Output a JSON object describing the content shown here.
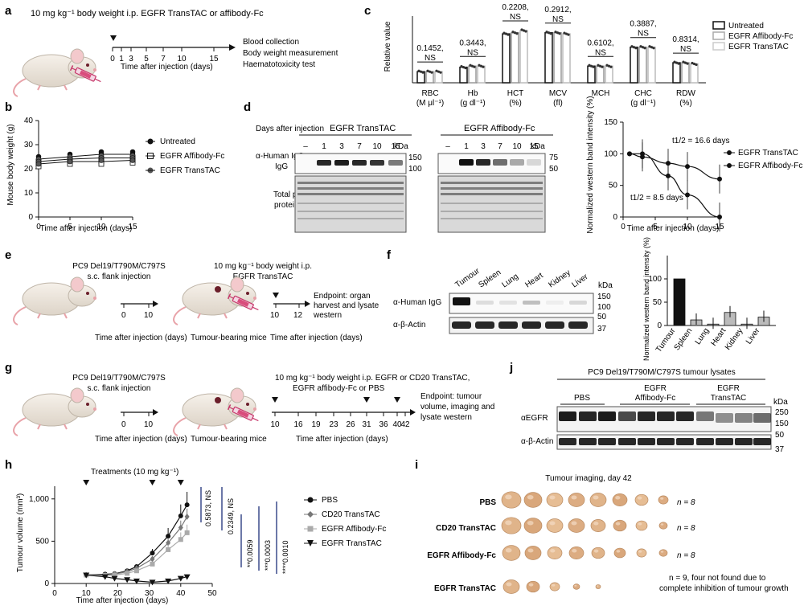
{
  "panels": {
    "a": {
      "letter": "a",
      "header": "10 mg kg⁻¹ body weight i.p. EGFR TransTAC or affibody-Fc",
      "ticks": [
        "0",
        "1",
        "3",
        "5",
        "7",
        "10",
        "15"
      ],
      "axis_label": "Time after injection (days)",
      "outcomes": [
        "Blood collection",
        "Body weight measurement",
        "Haematotoxicity test"
      ]
    },
    "b": {
      "letter": "b",
      "ylabel": "Mouse body weight (g)",
      "xlabel": "Time after injection (days)",
      "legend": [
        "Untreated",
        "EGFR Affibody-Fc",
        "EGFR TransTAC"
      ],
      "yticks": [
        "0",
        "10",
        "20",
        "30",
        "40"
      ],
      "xticks": [
        "0",
        "5",
        "10",
        "15"
      ]
    },
    "c": {
      "letter": "c",
      "ylabel": "Relative value",
      "legend": [
        "Untreated",
        "EGFR Affibody-Fc",
        "EGFR TransTAC"
      ],
      "params": [
        {
          "name": "RBC",
          "unit": "(M μl⁻¹)",
          "p": "0.1452,",
          "ns": "NS"
        },
        {
          "name": "Hb",
          "unit": "(g dl⁻¹)",
          "p": "0.3443,",
          "ns": "NS"
        },
        {
          "name": "HCT",
          "unit": "(%)",
          "p": "0.2208,",
          "ns": "NS"
        },
        {
          "name": "MCV",
          "unit": "(fl)",
          "p": "0.2912,",
          "ns": "NS"
        },
        {
          "name": "MCH",
          "unit": "",
          "p": "0.6102,",
          "ns": "NS"
        },
        {
          "name": "CHC",
          "unit": "(g dl⁻¹)",
          "p": "0.3887,",
          "ns": "NS"
        },
        {
          "name": "RDW",
          "unit": "(%)",
          "p": "0.8314,",
          "ns": "NS"
        }
      ]
    },
    "d": {
      "letter": "d",
      "days_label": "Days after injection",
      "blot1_title": "EGFR TransTAC",
      "blot2_title": "EGFR Affibody-Fc",
      "lanes1": [
        "–",
        "1",
        "3",
        "7",
        "10",
        "15"
      ],
      "lanes2": [
        "–",
        "1",
        "3",
        "7",
        "10",
        "15"
      ],
      "kda": "kDa",
      "mw1": [
        "150",
        "100"
      ],
      "mw2": [
        "75",
        "50"
      ],
      "row1_label": "α-Human IgG",
      "row2_label": "Total protein",
      "ylabel": "Normalized western band intensity (%)",
      "xlabel": "Time after injection (days)",
      "legend": [
        "EGFR TransTAC",
        "EGFR Affibody-Fc"
      ],
      "half_life_1": "t1/2 = 16.6 days",
      "half_life_2": "t1/2 = 8.5 days",
      "yticks": [
        "0",
        "50",
        "100",
        "150"
      ],
      "xticks": [
        "0",
        "5",
        "10",
        "15"
      ]
    },
    "e": {
      "letter": "e",
      "cells": "PC9 Del19/T790M/C797S",
      "injection": "s.c. flank injection",
      "dose": "10 mg kg⁻¹ body weight i.p.",
      "drug": "EGFR TransTAC",
      "ticks1": [
        "0",
        "10"
      ],
      "ticks2": [
        "10",
        "12"
      ],
      "axis1": "Time after injection (days)",
      "mice_label": "Tumour-bearing mice",
      "axis2": "Time after injection (days)",
      "endpoint": "Endpoint: organ harvest and lysate western"
    },
    "f": {
      "letter": "f",
      "organs": [
        "Tumour",
        "Spleen",
        "Lung",
        "Heart",
        "Kidney",
        "Liver"
      ],
      "row1": "α-Human IgG",
      "row2": "α-β-Actin",
      "kda": "kDa",
      "mw": [
        "150",
        "100",
        "50",
        "37"
      ],
      "ylabel": "Normalized western band intensity (%)",
      "yticks": [
        "0",
        "50",
        "100"
      ]
    },
    "g": {
      "letter": "g",
      "cells": "PC9 Del19/T790M/C797S",
      "injection": "s.c. flank injection",
      "dose": "10 mg kg⁻¹ body weight i.p. EGFR or CD20 TransTAC,",
      "drugs": "EGFR affibody-Fc or PBS",
      "ticks1": [
        "0",
        "10"
      ],
      "ticks2": [
        "10",
        "16",
        "19",
        "23",
        "26",
        "31",
        "36",
        "40",
        "42"
      ],
      "axis1": "Time after injection (days)",
      "mice_label": "Tumour-bearing mice",
      "axis2": "Time after injection (days)",
      "endpoint": "Endpoint: tumour volume, imaging and lysate western"
    },
    "h": {
      "letter": "h",
      "treatments": "Treatments (10 mg kg⁻¹)",
      "ylabel": "Tumour volume (mm³)",
      "xlabel": "Time after injection (days)",
      "legend": [
        "PBS",
        "CD20 TransTAC",
        "EGFR Affibody-Fc",
        "EGFR TransTAC"
      ],
      "stats": [
        "0.5873, NS",
        "0.2349, NS",
        "**0.0059",
        "***0.0003",
        "****0.0010"
      ],
      "yticks": [
        "0",
        "500",
        "1,000"
      ],
      "xticks": [
        "0",
        "10",
        "20",
        "30",
        "40",
        "50"
      ]
    },
    "i": {
      "letter": "i",
      "title": "Tumour imaging, day 42",
      "rows": [
        {
          "label": "PBS",
          "n": "n = 8"
        },
        {
          "label": "CD20 TransTAC",
          "n": "n = 8"
        },
        {
          "label": "EGFR Affibody-Fc",
          "n": "n = 8"
        },
        {
          "label": "EGFR TransTAC",
          "n": "n = 9, four not found due to complete inhibition of tumour growth"
        }
      ]
    },
    "j": {
      "letter": "j",
      "title": "PC9 Del19/T790M/C797S tumour lysates",
      "groups": [
        "PBS",
        "EGFR Affibody-Fc",
        "EGFR TransTAC"
      ],
      "row1": "αEGFR",
      "row2": "α-β-Actin",
      "kda": "kDa",
      "mw": [
        "250",
        "150",
        "50",
        "37"
      ]
    }
  },
  "chart_data": [
    {
      "id": "b",
      "type": "line",
      "xlabel": "Time after injection (days)",
      "ylabel": "Mouse body weight (g)",
      "ylim": [
        0,
        40
      ],
      "xlim": [
        0,
        15
      ],
      "x": [
        0,
        5,
        10,
        15
      ],
      "series": [
        {
          "name": "Untreated",
          "values": [
            24,
            25,
            26,
            26
          ]
        },
        {
          "name": "EGFR Affibody-Fc",
          "values": [
            22,
            23,
            23,
            23.5
          ]
        },
        {
          "name": "EGFR TransTAC",
          "values": [
            23,
            24,
            24.5,
            24.5
          ]
        }
      ]
    },
    {
      "id": "c",
      "type": "bar",
      "ylabel": "Relative value",
      "categories": [
        "RBC",
        "Hb",
        "HCT",
        "MCV",
        "MCH",
        "CHC",
        "RDW"
      ],
      "series": [
        {
          "name": "Untreated",
          "values": [
            10,
            14,
            44,
            45,
            15,
            32,
            18
          ]
        },
        {
          "name": "EGFR Affibody-Fc",
          "values": [
            10,
            15,
            45,
            45,
            15,
            32,
            18
          ]
        },
        {
          "name": "EGFR TransTAC",
          "values": [
            10,
            15,
            47,
            44,
            15,
            32,
            17
          ]
        }
      ]
    },
    {
      "id": "d",
      "type": "line",
      "xlabel": "Time after injection (days)",
      "ylabel": "Normalized western band intensity (%)",
      "ylim": [
        0,
        150
      ],
      "xlim": [
        0,
        15
      ],
      "x": [
        1,
        3,
        7,
        10,
        15
      ],
      "series": [
        {
          "name": "EGFR TransTAC",
          "values": [
            100,
            95,
            85,
            80,
            60
          ]
        },
        {
          "name": "EGFR Affibody-Fc",
          "values": [
            100,
            100,
            65,
            35,
            0
          ]
        }
      ]
    },
    {
      "id": "f",
      "type": "bar",
      "ylabel": "Normalized western band intensity (%)",
      "categories": [
        "Tumour",
        "Spleen",
        "Lung",
        "Heart",
        "Kidney",
        "Liver"
      ],
      "values": [
        100,
        12,
        3,
        28,
        3,
        18
      ],
      "ylim": [
        0,
        100
      ]
    },
    {
      "id": "h",
      "type": "line",
      "xlabel": "Time after injection (days)",
      "ylabel": "Tumour volume (mm³)",
      "ylim": [
        0,
        1150
      ],
      "xlim": [
        0,
        50
      ],
      "x": [
        10,
        16,
        19,
        23,
        26,
        31,
        36,
        40,
        42
      ],
      "series": [
        {
          "name": "PBS",
          "values": [
            100,
            110,
            115,
            150,
            200,
            360,
            560,
            800,
            930
          ]
        },
        {
          "name": "CD20 TransTAC",
          "values": [
            100,
            100,
            110,
            140,
            180,
            290,
            480,
            660,
            790
          ]
        },
        {
          "name": "EGFR Affibody-Fc",
          "values": [
            100,
            95,
            100,
            120,
            150,
            230,
            400,
            520,
            600
          ]
        },
        {
          "name": "EGFR TransTAC",
          "values": [
            100,
            80,
            60,
            45,
            30,
            15,
            30,
            60,
            80
          ]
        }
      ]
    }
  ]
}
